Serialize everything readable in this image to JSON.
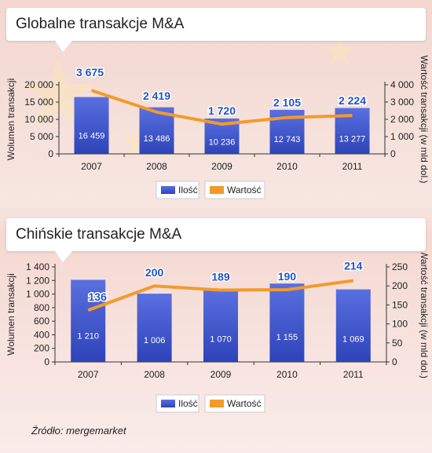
{
  "source": "Źródło: mergemarket",
  "colors": {
    "bar": "#2d43b8",
    "bar_light": "#5a70e0",
    "line": "#f39a2b",
    "label_blue": "#2255c8"
  },
  "chart_data": [
    {
      "type": "bar",
      "title": "Globalne transakcje M&A",
      "categories": [
        "2007",
        "2008",
        "2009",
        "2010",
        "2011"
      ],
      "series": [
        {
          "name": "Ilość",
          "type": "bar",
          "axis": "left",
          "values": [
            16459,
            13486,
            10236,
            12743,
            13277
          ],
          "labels": [
            "16 459",
            "13 486",
            "10 236",
            "12 743",
            "13 277"
          ]
        },
        {
          "name": "Wartość",
          "type": "line",
          "axis": "right",
          "values": [
            3675,
            2419,
            1720,
            2105,
            2224
          ],
          "labels": [
            "3 675",
            "2 419",
            "1 720",
            "2 105",
            "2 224"
          ]
        }
      ],
      "ylabel": "Wolumen transakcji",
      "y2label": "Wartość transakcji (w mld dol.)",
      "ylim": [
        0,
        20000
      ],
      "y2lim": [
        0,
        4000
      ],
      "yticks": [
        0,
        5000,
        10000,
        15000,
        20000
      ],
      "yticklabels": [
        "0",
        "5 000",
        "10 000",
        "15 000",
        "20 000"
      ],
      "y2ticks": [
        0,
        1000,
        2000,
        3000,
        4000
      ],
      "y2ticklabels": [
        "0",
        "1 000",
        "2 000",
        "3 000",
        "4 000"
      ],
      "legend": [
        "Ilość",
        "Wartość"
      ],
      "legend_position": "bottom-center",
      "grid": false
    },
    {
      "type": "bar",
      "title": "Chińskie transakcje M&A",
      "categories": [
        "2007",
        "2008",
        "2009",
        "2010",
        "2011"
      ],
      "series": [
        {
          "name": "Ilość",
          "type": "bar",
          "axis": "left",
          "values": [
            1210,
            1006,
            1070,
            1155,
            1069
          ],
          "labels": [
            "1 210",
            "1 006",
            "1 070",
            "1 155",
            "1 069"
          ]
        },
        {
          "name": "Wartość",
          "type": "line",
          "axis": "right",
          "values": [
            136,
            200,
            189,
            190,
            214
          ],
          "labels": [
            "136",
            "200",
            "189",
            "190",
            "214"
          ]
        }
      ],
      "ylabel": "Wolumen transakcji",
      "y2label": "Wartość transakcji (w mld dol.)",
      "ylim": [
        0,
        1400
      ],
      "y2lim": [
        0,
        250
      ],
      "yticks": [
        0,
        200,
        400,
        600,
        800,
        1000,
        1200,
        1400
      ],
      "yticklabels": [
        "0",
        "200",
        "400",
        "600",
        "800",
        "1 000",
        "1 200",
        "1 400"
      ],
      "y2ticks": [
        0,
        50,
        100,
        150,
        200,
        250
      ],
      "y2ticklabels": [
        "0",
        "50",
        "100",
        "150",
        "200",
        "250"
      ],
      "legend": [
        "Ilość",
        "Wartość"
      ],
      "legend_position": "bottom-center",
      "grid": false
    }
  ]
}
